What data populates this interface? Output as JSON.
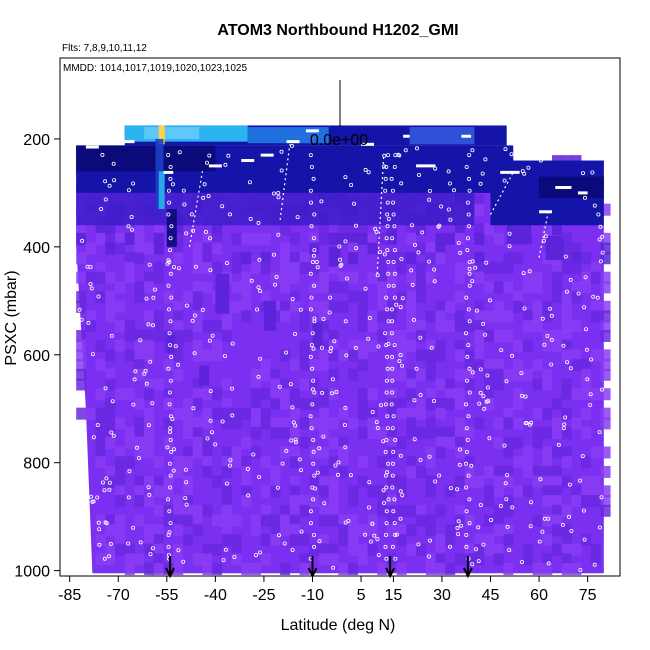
{
  "chart_data": {
    "type": "heatmap",
    "title": "ATOM3 Northbound H1202_GMI",
    "subtitle_flights": "Flts: 7,8,9,10,11,12",
    "subtitle_dates": "MMDD: 1014,1017,1019,1020,1023,1025",
    "scale_marker_label": "0.0e+00",
    "xlabel": "Latitude (deg N)",
    "ylabel": "PSXC (mbar)",
    "xlim": [
      -88,
      85
    ],
    "ylim": [
      1010,
      50
    ],
    "x_ticks": [
      -85,
      -70,
      -55,
      -40,
      -25,
      -10,
      5,
      15,
      30,
      45,
      60,
      75
    ],
    "y_ticks": [
      200,
      400,
      600,
      800,
      1000
    ],
    "arrow_latitudes": [
      -54,
      -10,
      14,
      38
    ],
    "colors": {
      "background_field": "#7b2ff0",
      "mid_violet": "#5a22d8",
      "deep_blue": "#1414a8",
      "navy": "#0a0a7a",
      "cyan": "#2ab4f0",
      "light_blue": "#60c8f8",
      "yellow": "#ffd24a",
      "point_outline": "#ffffff"
    }
  }
}
